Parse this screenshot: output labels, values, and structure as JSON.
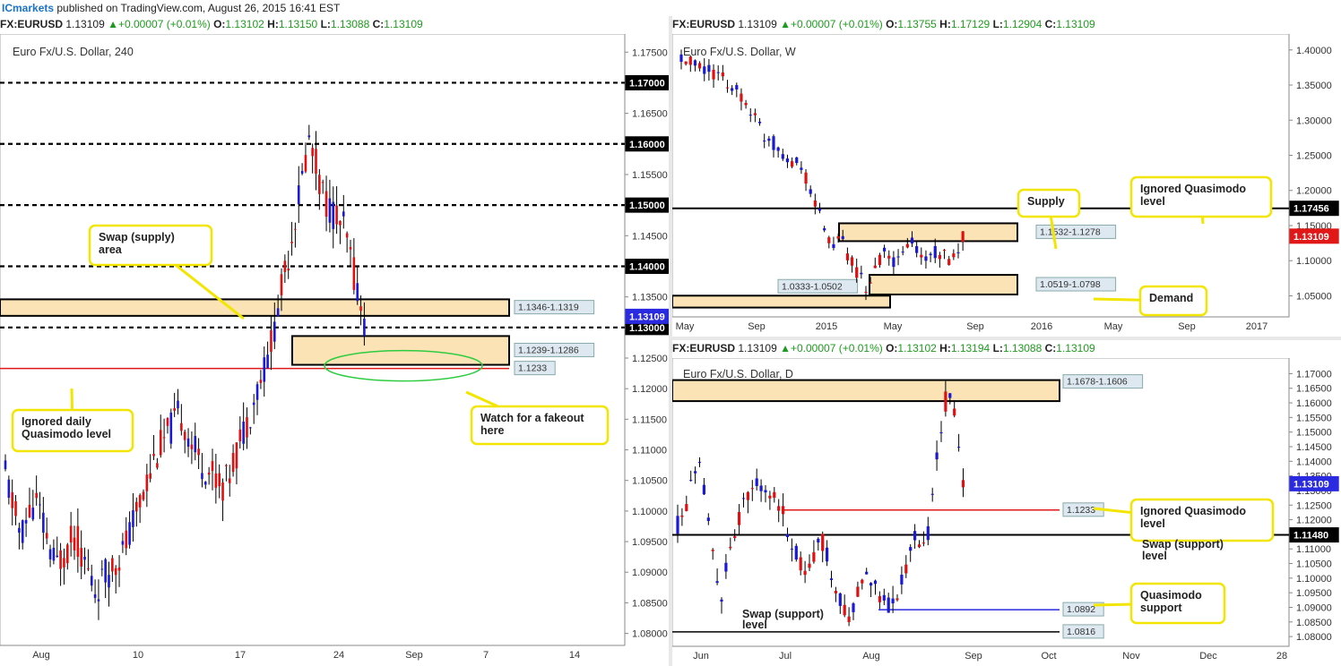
{
  "header": {
    "brand": "ICmarkets",
    "rest": " published on TradingView.com, August 26, 2015 16:41 EST"
  },
  "colors": {
    "up": "#1a1ad4",
    "down": "#e01010",
    "zone_fill": "#fbe3b5",
    "callout_border": "#f2e600",
    "highlight_blue": "#2a2ae0",
    "highlight_red": "#e01818",
    "dark": "#000000"
  },
  "panels": {
    "h4": {
      "symbol": "FX:EURUSD",
      "last": "1.13109",
      "change": "+0.00007 (+0.01%)",
      "o": "1.13102",
      "h": "1.13150",
      "l": "1.13088",
      "c": "1.13109",
      "chart_title": "Euro Fx/U.S. Dollar, 240",
      "chart_data": {
        "type": "candlestick",
        "timeframe": "240",
        "xticks": [
          "Aug",
          "10",
          "17",
          "24",
          "Sep",
          "7",
          "14"
        ],
        "yticks": [
          "1.08000",
          "1.08500",
          "1.09000",
          "1.09500",
          "1.10000",
          "1.10500",
          "1.11000",
          "1.11500",
          "1.12000",
          "1.12500",
          "1.13000",
          "1.13500",
          "1.14000",
          "1.14500",
          "1.15000",
          "1.15500",
          "1.16000",
          "1.16500",
          "1.17000",
          "1.17500"
        ],
        "ylim": [
          1.0795,
          1.1765
        ],
        "round_levels": [
          1.17,
          1.16,
          1.15,
          1.14,
          1.13
        ],
        "round_labels": [
          "1.17000",
          "1.16000",
          "1.15000",
          "1.14000",
          "1.13000"
        ],
        "zones": [
          {
            "low": 1.1319,
            "high": 1.1346,
            "label": "1.1346-1.1319"
          },
          {
            "low": 1.1239,
            "high": 1.1286,
            "label": "1.1239-1.1286"
          }
        ],
        "red_level": {
          "value": 1.1233,
          "label": "1.1233"
        },
        "last_price": "1.13109",
        "anchors": [
          [
            0.0,
            1.106
          ],
          [
            0.03,
            1.096
          ],
          [
            0.06,
            1.102
          ],
          [
            0.1,
            1.091
          ],
          [
            0.14,
            1.096
          ],
          [
            0.18,
            1.087
          ],
          [
            0.24,
            1.094
          ],
          [
            0.3,
            1.109
          ],
          [
            0.35,
            1.116
          ],
          [
            0.39,
            1.108
          ],
          [
            0.44,
            1.104
          ],
          [
            0.49,
            1.116
          ],
          [
            0.53,
            1.126
          ],
          [
            0.57,
            1.143
          ],
          [
            0.61,
            1.161
          ],
          [
            0.64,
            1.151
          ],
          [
            0.68,
            1.146
          ],
          [
            0.72,
            1.131
          ]
        ]
      },
      "annotations": {
        "swap_area": "Swap (supply)\narea",
        "ignored_daily_qm": "Ignored daily\nQuasimodo level",
        "watch_fakeout": "Watch for a fakeout\nhere"
      }
    },
    "weekly": {
      "symbol": "FX:EURUSD",
      "last": "1.13109",
      "change": "+0.00007 (+0.01%)",
      "o": "1.13755",
      "h": "1.17129",
      "l": "1.12904",
      "c": "1.13109",
      "chart_title": "Euro Fx/U.S. Dollar, W",
      "chart_data": {
        "type": "candlestick",
        "timeframe": "W",
        "xticks": [
          "May",
          "Sep",
          "2015",
          "May",
          "Sep",
          "2016",
          "May",
          "Sep",
          "2017"
        ],
        "yticks": [
          "1.05000",
          "1.10000",
          "1.15000",
          "1.20000",
          "1.25000",
          "1.30000",
          "1.35000",
          "1.40000"
        ],
        "ylim": [
          1.02,
          1.415
        ],
        "black_level": {
          "value": 1.17456,
          "label": "1.17456"
        },
        "zones": [
          {
            "low": 1.1278,
            "high": 1.1532,
            "label": "1.1532-1.1278"
          },
          {
            "low": 1.0519,
            "high": 1.0798,
            "label": "1.0519-1.0798"
          },
          {
            "low": 1.0333,
            "high": 1.0502,
            "label": "1.0333-1.0502"
          }
        ],
        "last_price": "1.13109",
        "anchors": [
          [
            0.0,
            1.385
          ],
          [
            0.06,
            1.37
          ],
          [
            0.1,
            1.355
          ],
          [
            0.14,
            1.33
          ],
          [
            0.18,
            1.28
          ],
          [
            0.22,
            1.255
          ],
          [
            0.26,
            1.235
          ],
          [
            0.3,
            1.17
          ],
          [
            0.33,
            1.12
          ],
          [
            0.35,
            1.13
          ],
          [
            0.38,
            1.085
          ],
          [
            0.41,
            1.06
          ],
          [
            0.44,
            1.11
          ],
          [
            0.47,
            1.095
          ],
          [
            0.5,
            1.13
          ],
          [
            0.53,
            1.1
          ],
          [
            0.56,
            1.115
          ],
          [
            0.59,
            1.095
          ],
          [
            0.615,
            1.131
          ]
        ]
      },
      "annotations": {
        "supply": "Supply",
        "ignored_qm": "Ignored Quasimodo\nlevel",
        "demand": "Demand"
      }
    },
    "daily": {
      "symbol": "FX:EURUSD",
      "last": "1.13109",
      "change": "+0.00007 (+0.01%)",
      "o": "1.13102",
      "h": "1.13194",
      "l": "1.13088",
      "c": "1.13109",
      "chart_title": "Euro Fx/U.S. Dollar, D",
      "chart_data": {
        "type": "candlestick",
        "timeframe": "D",
        "xticks": [
          "Jun",
          "Jul",
          "Aug",
          "Sep",
          "Oct",
          "Nov",
          "Dec",
          "28"
        ],
        "yticks": [
          "1.08000",
          "1.08500",
          "1.09000",
          "1.09500",
          "1.10000",
          "1.10500",
          "1.11000",
          "1.11500",
          "1.12000",
          "1.12500",
          "1.13000",
          "1.13500",
          "1.14000",
          "1.14500",
          "1.15000",
          "1.15500",
          "1.16000",
          "1.16500",
          "1.17000"
        ],
        "ylim": [
          1.0785,
          1.1735
        ],
        "zone": {
          "low": 1.1606,
          "high": 1.1678,
          "label": "1.1678-1.1606"
        },
        "red_level": {
          "value": 1.1233,
          "label": "1.1233"
        },
        "black_level": {
          "value": 1.1148,
          "label": "1.11480"
        },
        "blue_level": {
          "value": 1.0892,
          "label": "1.0892"
        },
        "low_level": {
          "value": 1.0816,
          "label": "1.0816"
        },
        "last_price": "1.13109",
        "anchors": [
          [
            0.0,
            1.118
          ],
          [
            0.01,
            1.121
          ],
          [
            0.03,
            1.132
          ],
          [
            0.05,
            1.137
          ],
          [
            0.07,
            1.113
          ],
          [
            0.09,
            1.093
          ],
          [
            0.12,
            1.114
          ],
          [
            0.15,
            1.129
          ],
          [
            0.18,
            1.133
          ],
          [
            0.21,
            1.127
          ],
          [
            0.24,
            1.115
          ],
          [
            0.27,
            1.101
          ],
          [
            0.31,
            1.113
          ],
          [
            0.34,
            1.094
          ],
          [
            0.37,
            1.086
          ],
          [
            0.4,
            1.105
          ],
          [
            0.43,
            1.095
          ],
          [
            0.46,
            1.09
          ],
          [
            0.49,
            1.104
          ],
          [
            0.51,
            1.117
          ],
          [
            0.53,
            1.108
          ],
          [
            0.55,
            1.135
          ],
          [
            0.57,
            1.161
          ],
          [
            0.59,
            1.159
          ],
          [
            0.61,
            1.131
          ]
        ]
      },
      "annotations": {
        "ignored_qm": "Ignored Quasimodo\nlevel",
        "swap_support": "Swap (support)\nlevel",
        "qm_support": "Quasimodo\nsupport",
        "swap_support_low": "Swap (support)\nlevel"
      }
    }
  }
}
